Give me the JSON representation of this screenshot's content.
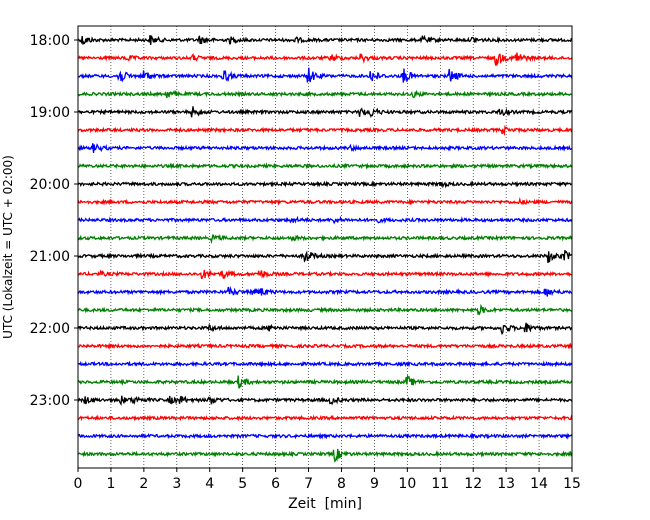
{
  "chart_data": {
    "type": "line",
    "title": "",
    "xlabel": "Zeit  [min]",
    "ylabel": "UTC (Lokalzeit = UTC + 02:00)",
    "xlim": [
      0,
      15
    ],
    "x_ticks": [
      "0",
      "1",
      "2",
      "3",
      "4",
      "5",
      "6",
      "7",
      "8",
      "9",
      "10",
      "11",
      "12",
      "13",
      "14",
      "15"
    ],
    "y_tick_labels": [
      "18:00",
      "19:00",
      "20:00",
      "21:00",
      "22:00",
      "23:00"
    ],
    "grid": "vertical dotted at each minute",
    "legend": "none",
    "traces_per_hour": 4,
    "trace_color_cycle": [
      "#000000",
      "#ff0000",
      "#0000ff",
      "#008000"
    ],
    "series": [
      {
        "start": "18:00",
        "events": [
          [
            0.15,
            0.6
          ],
          [
            2.2,
            0.6
          ],
          [
            3.7,
            0.5
          ],
          [
            4.6,
            0.4
          ],
          [
            6.6,
            0.3
          ],
          [
            10.5,
            0.4
          ],
          [
            12.0,
            0.3
          ]
        ]
      },
      {
        "start": "18:15",
        "events": [
          [
            1.5,
            0.3
          ],
          [
            3.5,
            0.3
          ],
          [
            7.7,
            0.4
          ],
          [
            8.6,
            0.5
          ],
          [
            12.7,
            1.0
          ],
          [
            13.3,
            0.9
          ]
        ]
      },
      {
        "start": "18:30",
        "events": [
          [
            1.25,
            1.0
          ],
          [
            2.0,
            0.7
          ],
          [
            4.4,
            0.9
          ],
          [
            7.0,
            1.0
          ],
          [
            8.9,
            0.9
          ],
          [
            9.9,
            1.0
          ],
          [
            11.3,
            0.9
          ]
        ]
      },
      {
        "start": "18:45",
        "events": [
          [
            2.7,
            0.5
          ],
          [
            10.2,
            0.3
          ]
        ]
      },
      {
        "start": "19:00",
        "events": [
          [
            3.5,
            0.6
          ],
          [
            8.6,
            0.5
          ],
          [
            8.9,
            0.6
          ],
          [
            12.8,
            0.5
          ]
        ]
      },
      {
        "start": "19:15",
        "events": [
          [
            12.9,
            0.4
          ]
        ]
      },
      {
        "start": "19:30",
        "events": [
          [
            0.5,
            0.5
          ],
          [
            8.3,
            0.2
          ]
        ]
      },
      {
        "start": "19:45",
        "events": []
      },
      {
        "start": "20:00",
        "events": [
          [
            11.0,
            0.3
          ]
        ]
      },
      {
        "start": "20:15",
        "events": [
          [
            13.4,
            0.2
          ]
        ]
      },
      {
        "start": "20:30",
        "events": [
          [
            6.5,
            0.3
          ],
          [
            7.8,
            0.3
          ],
          [
            9.1,
            0.2
          ]
        ]
      },
      {
        "start": "20:45",
        "events": [
          [
            4.1,
            0.3
          ],
          [
            6.5,
            0.2
          ]
        ]
      },
      {
        "start": "21:00",
        "events": [
          [
            6.9,
            0.9
          ],
          [
            14.3,
            0.8
          ],
          [
            14.8,
            0.6
          ]
        ]
      },
      {
        "start": "21:15",
        "events": [
          [
            3.8,
            0.5
          ],
          [
            4.4,
            0.5
          ],
          [
            5.5,
            0.6
          ],
          [
            0.7,
            0.2
          ]
        ]
      },
      {
        "start": "21:30",
        "events": [
          [
            4.6,
            0.5
          ],
          [
            5.3,
            0.4
          ],
          [
            5.6,
            0.4
          ],
          [
            14.2,
            0.6
          ]
        ]
      },
      {
        "start": "21:45",
        "events": [
          [
            12.2,
            0.5
          ]
        ]
      },
      {
        "start": "22:00",
        "events": [
          [
            4.0,
            0.3
          ],
          [
            5.8,
            0.3
          ],
          [
            12.9,
            0.7
          ],
          [
            13.6,
            0.6
          ]
        ]
      },
      {
        "start": "22:15",
        "events": []
      },
      {
        "start": "22:30",
        "events": []
      },
      {
        "start": "22:45",
        "events": [
          [
            4.9,
            0.7
          ],
          [
            10.0,
            0.7
          ]
        ]
      },
      {
        "start": "23:00",
        "events": [
          [
            0.2,
            0.5
          ],
          [
            1.3,
            0.5
          ],
          [
            1.7,
            0.4
          ],
          [
            2.8,
            0.4
          ],
          [
            3.1,
            0.5
          ],
          [
            4.0,
            0.6
          ],
          [
            7.7,
            0.4
          ]
        ]
      },
      {
        "start": "23:15",
        "events": []
      },
      {
        "start": "23:30",
        "events": []
      },
      {
        "start": "23:45",
        "events": [
          [
            7.8,
            0.9
          ]
        ]
      }
    ]
  }
}
